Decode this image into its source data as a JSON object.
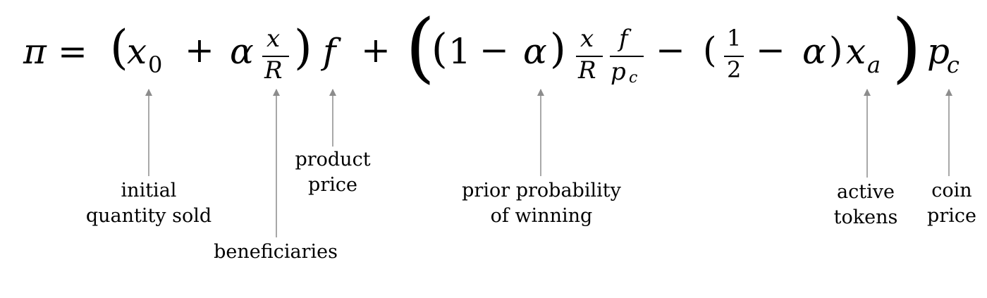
{
  "equation": {
    "pi": "π",
    "eq": "=",
    "plus": "+",
    "minus": "−",
    "lparen": "(",
    "rparen": ")",
    "x": "x",
    "sub_0": "0",
    "alpha": "α",
    "R": "R",
    "f": "f",
    "p": "p",
    "sub_c": "c",
    "sub_a": "a",
    "one": "1",
    "two": "2"
  },
  "annotations": {
    "initial_quantity_sold": [
      "initial",
      "quantity sold"
    ],
    "beneficiaries": [
      "beneficiaries"
    ],
    "product_price": [
      "product",
      "price"
    ],
    "prior_probability": [
      "prior probability",
      "of winning"
    ],
    "active_tokens": [
      "active",
      "tokens"
    ],
    "coin_price": [
      "coin",
      "price"
    ]
  },
  "colors": {
    "text": "#000000",
    "arrow": "#8c8c8c"
  }
}
